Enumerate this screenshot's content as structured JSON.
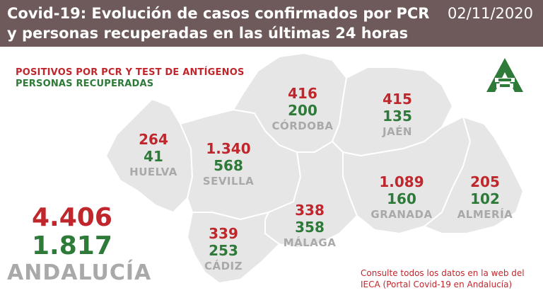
{
  "header": {
    "title": "Covid-19: Evolución de casos confirmados por PCR y personas recuperadas en las últimas 24 horas",
    "date": "02/11/2020"
  },
  "legend": {
    "positives": "POSITIVOS POR PCR Y TEST DE ANTÍGENOS",
    "recovered": "PERSONAS RECUPERADAS"
  },
  "provinces": {
    "huelva": {
      "name": "HUELVA",
      "positives": "264",
      "recovered": "41"
    },
    "sevilla": {
      "name": "SEVILLA",
      "positives": "1.340",
      "recovered": "568"
    },
    "cordoba": {
      "name": "CÓRDOBA",
      "positives": "416",
      "recovered": "200"
    },
    "jaen": {
      "name": "JAÉN",
      "positives": "415",
      "recovered": "135"
    },
    "granada": {
      "name": "GRANADA",
      "positives": "1.089",
      "recovered": "160"
    },
    "almeria": {
      "name": "ALMERÍA",
      "positives": "205",
      "recovered": "102"
    },
    "malaga": {
      "name": "MÁLAGA",
      "positives": "338",
      "recovered": "358"
    },
    "cadiz": {
      "name": "CÁDIZ",
      "positives": "339",
      "recovered": "253"
    }
  },
  "total": {
    "name": "ANDALUCÍA",
    "positives": "4.406",
    "recovered": "1.817"
  },
  "note": "Consulte todos los datos en la web del IECA (Portal Covid-19 en Andalucía)",
  "colors": {
    "header": "#6e5a5a",
    "positives": "#c0272d",
    "recovered": "#2d7a39",
    "map": "#e6e6e6",
    "border": "#ffffff",
    "province_label": "#a9a9a9"
  },
  "logo": {
    "icon": "junta-andalucia-logo-icon"
  }
}
